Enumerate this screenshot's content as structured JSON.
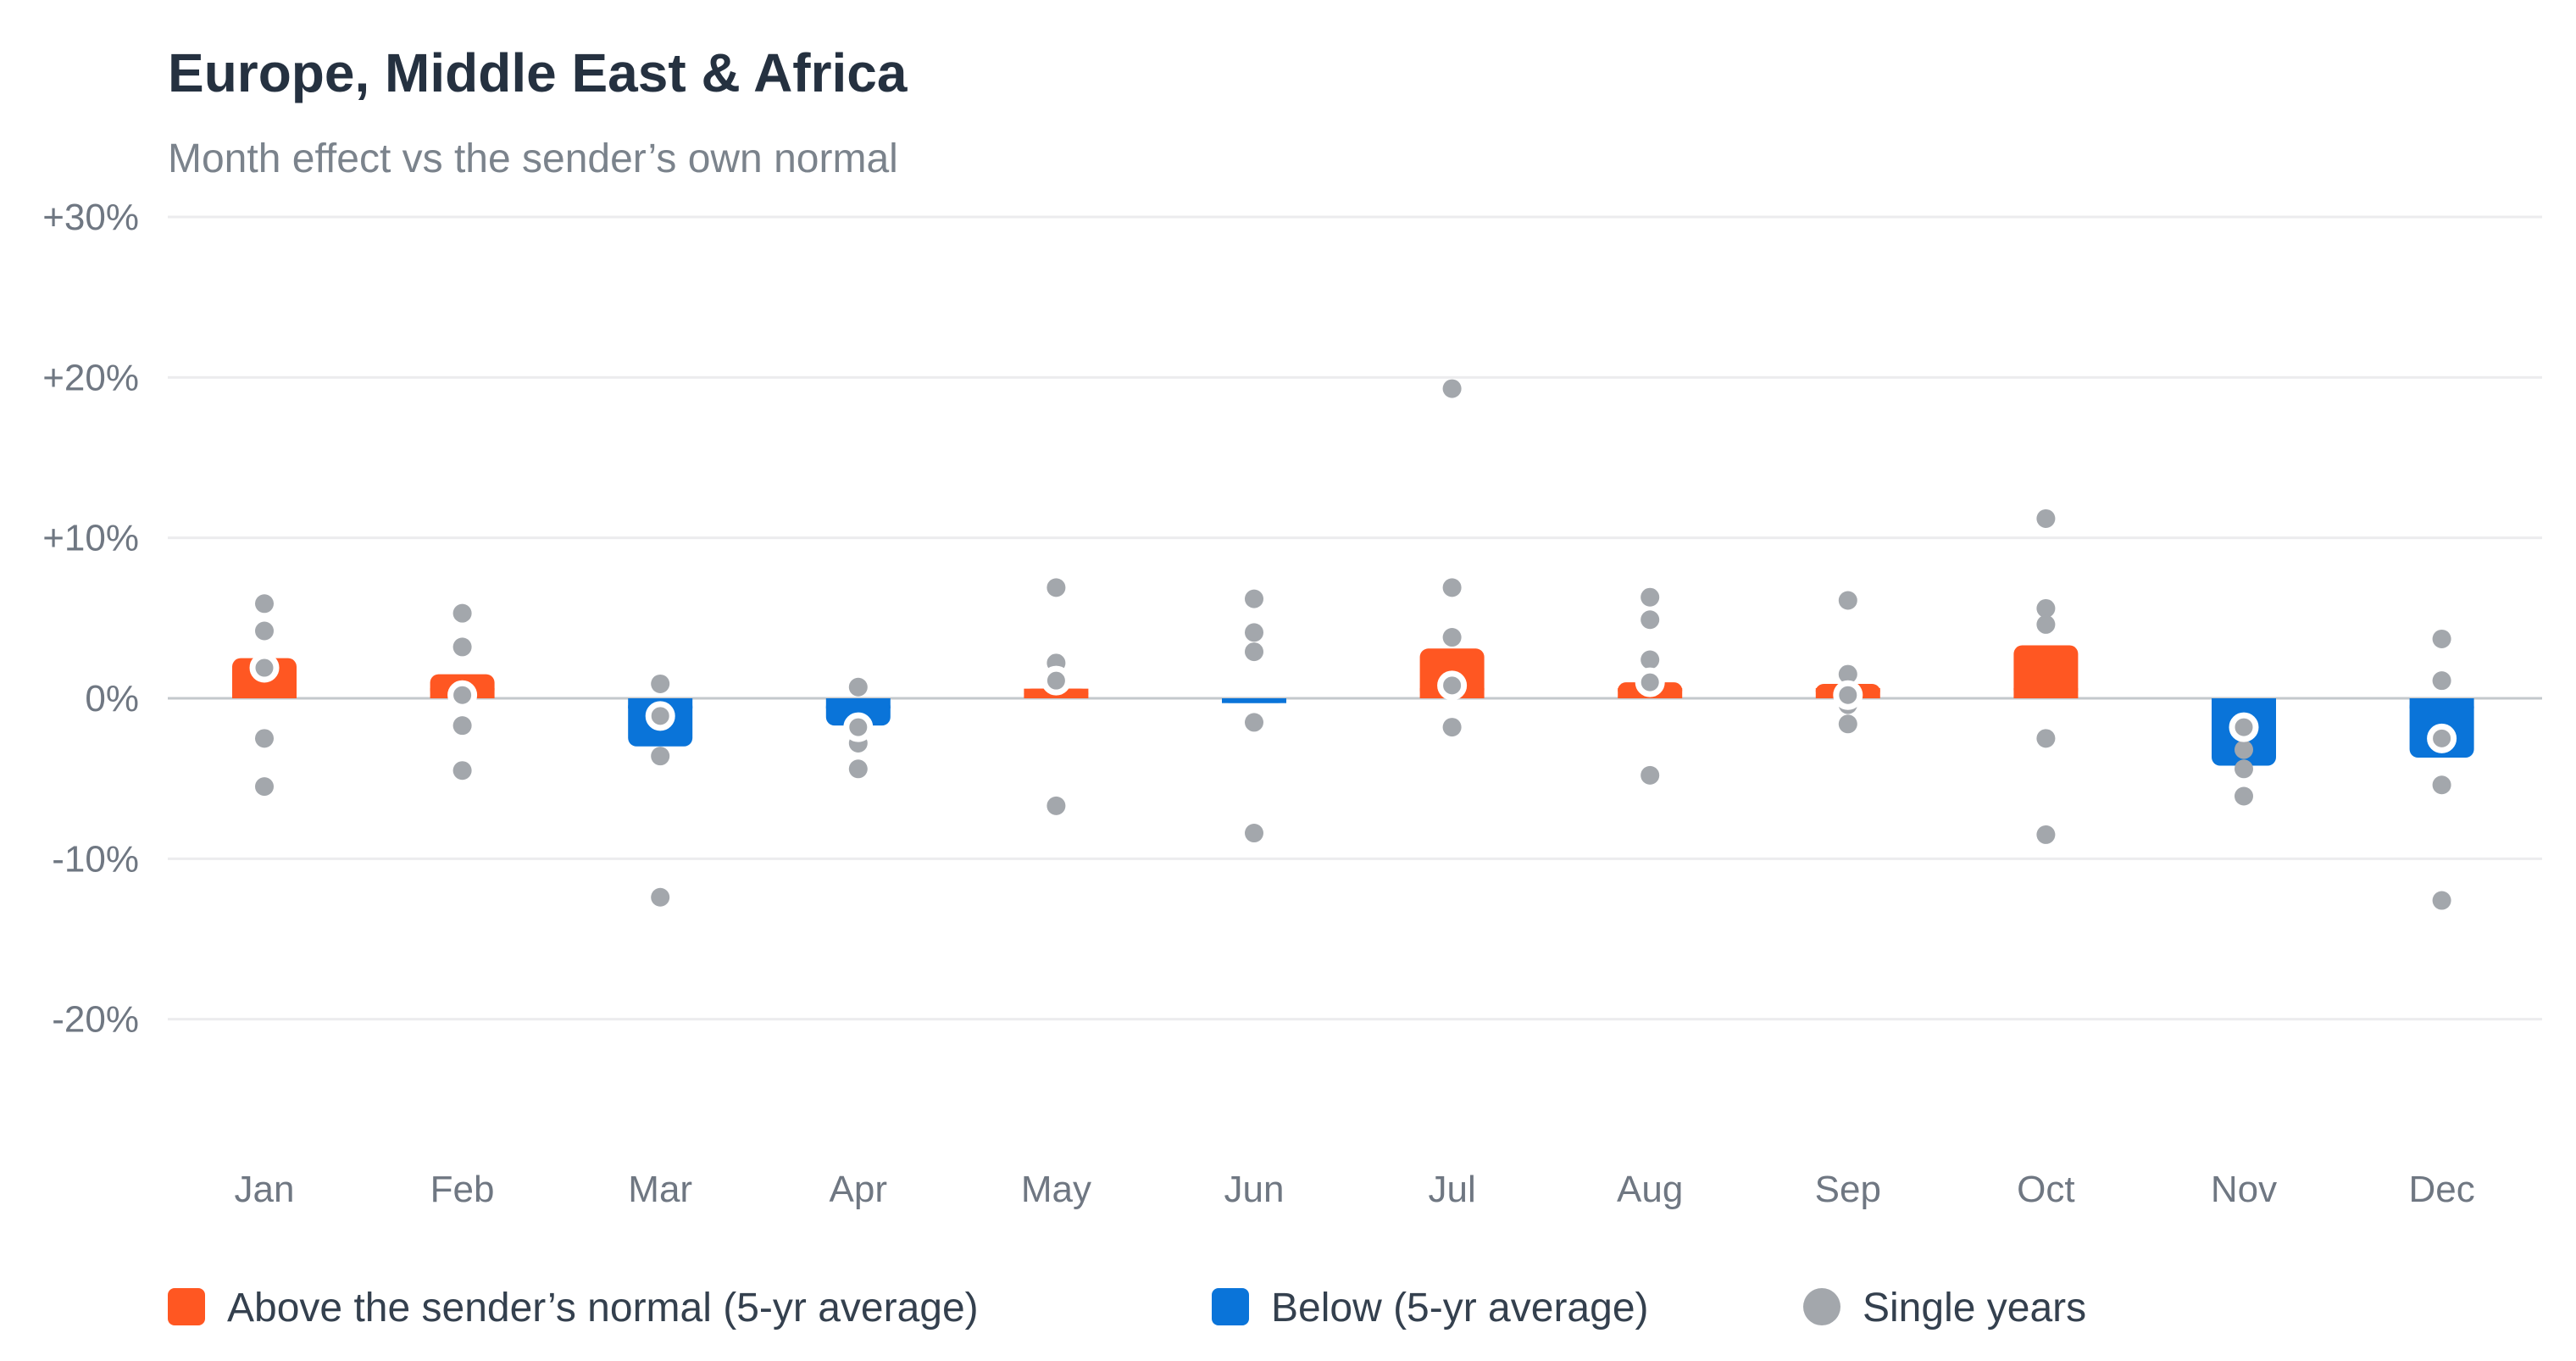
{
  "chart_data": {
    "type": "bar",
    "title": "Europe, Middle East & Africa",
    "subtitle": "Month effect vs the sender’s own normal",
    "xlabel": "",
    "ylabel": "",
    "categories": [
      "Jan",
      "Feb",
      "Mar",
      "Apr",
      "May",
      "Jun",
      "Jul",
      "Aug",
      "Sep",
      "Oct",
      "Nov",
      "Dec"
    ],
    "ylim": [
      -30,
      30
    ],
    "yticks": [
      30,
      20,
      10,
      0,
      -10,
      -20
    ],
    "ytick_labels": [
      "+30%",
      "+20%",
      "+10%",
      "0%",
      "-10%",
      "-20%"
    ],
    "grid": true,
    "legend_position": "bottom",
    "series": [
      {
        "name": "Above the sender’s normal (5-yr average)",
        "kind": "bar",
        "color": "#ff5722",
        "values": [
          2.5,
          1.5,
          null,
          null,
          0.6,
          null,
          3.1,
          1.0,
          0.9,
          3.3,
          null,
          null
        ]
      },
      {
        "name": "Below (5-yr average)",
        "kind": "bar",
        "color": "#0a74d9",
        "values": [
          null,
          null,
          -3.0,
          -1.7,
          null,
          -0.3,
          null,
          null,
          null,
          null,
          -4.2,
          -3.7
        ]
      },
      {
        "name": "Single years",
        "kind": "scatter",
        "color": "#a3a7ac",
        "points": [
          [
            5.9,
            4.2,
            1.9,
            -2.5,
            -5.5
          ],
          [
            5.3,
            3.2,
            0.2,
            -1.7,
            -4.5
          ],
          [
            0.9,
            -1.1,
            -3.6,
            -12.4
          ],
          [
            0.7,
            -1.8,
            -2.8,
            -4.4
          ],
          [
            6.9,
            2.2,
            1.1,
            -6.7
          ],
          [
            6.2,
            4.1,
            2.9,
            -1.5,
            -8.4
          ],
          [
            19.3,
            6.9,
            3.8,
            0.8,
            -1.8
          ],
          [
            6.3,
            4.9,
            2.4,
            1.0,
            -4.8
          ],
          [
            6.1,
            1.5,
            -0.4,
            -1.6
          ],
          [
            11.2,
            5.6,
            4.6,
            -2.5,
            -8.5
          ],
          [
            -1.8,
            -3.2,
            -4.4,
            -6.1
          ],
          [
            3.7,
            1.1,
            -2.5,
            -5.4,
            -12.6
          ]
        ]
      }
    ],
    "highlight_points": [
      1.9,
      0.2,
      -1.1,
      -1.8,
      1.1,
      null,
      0.8,
      1.0,
      0.2,
      null,
      -1.8,
      -2.5
    ]
  }
}
